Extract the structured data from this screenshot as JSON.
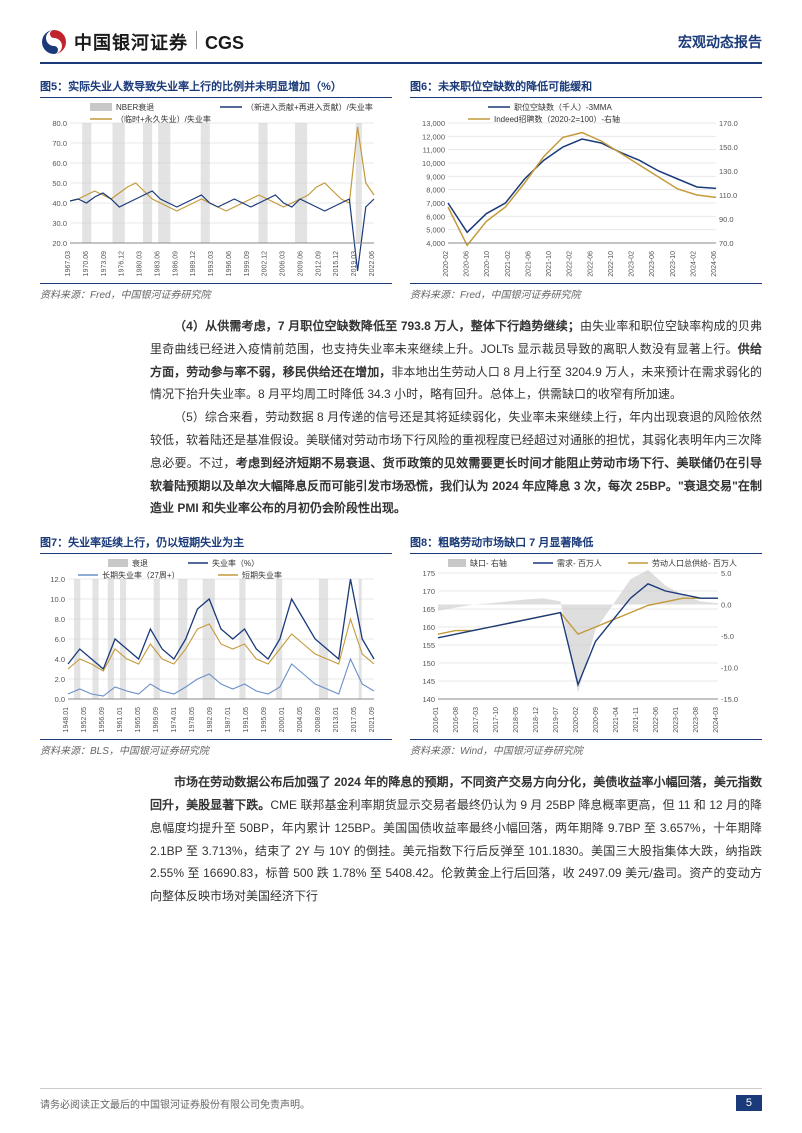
{
  "header": {
    "logo_cn": "中国银河证券",
    "logo_en": "CGS",
    "report_type": "宏观动态报告"
  },
  "charts": {
    "fig5": {
      "title": "图5：实际失业人数导致失业率上行的比例并未明显增加（%）",
      "source": "资料来源：Fred，中国银河证券研究院",
      "type": "line",
      "legend": [
        {
          "label": "NBER衰退",
          "color": "#b8b8b8",
          "style": "fill"
        },
        {
          "label": "（新进入贡献+再进入贡献）/失业率",
          "color": "#1a3a7a",
          "style": "line"
        },
        {
          "label": "（临时+永久失业）/失业率",
          "color": "#c49a3a",
          "style": "line"
        }
      ],
      "ylim": [
        20,
        80
      ],
      "ytick_step": 10,
      "x_labels": [
        "1967.03",
        "1970.06",
        "1973.09",
        "1976.12",
        "1980.03",
        "1983.06",
        "1986.09",
        "1989.12",
        "1993.03",
        "1996.06",
        "1999.09",
        "2002.12",
        "2006.03",
        "2009.06",
        "2012.09",
        "2015.12",
        "2019.03",
        "2022.06"
      ],
      "recession_bands": [
        [
          0.04,
          0.07
        ],
        [
          0.14,
          0.18
        ],
        [
          0.24,
          0.27
        ],
        [
          0.29,
          0.33
        ],
        [
          0.43,
          0.46
        ],
        [
          0.62,
          0.65
        ],
        [
          0.74,
          0.78
        ],
        [
          0.94,
          0.96
        ]
      ],
      "series_blue": [
        41,
        42,
        40,
        43,
        45,
        42,
        38,
        40,
        42,
        44,
        46,
        42,
        40,
        38,
        40,
        42,
        44,
        40,
        38,
        40,
        42,
        40,
        38,
        40,
        42,
        44,
        40,
        38,
        42,
        40,
        38,
        36,
        38,
        40,
        42,
        6,
        38,
        42
      ],
      "series_gold": [
        41,
        42,
        44,
        46,
        44,
        42,
        45,
        48,
        50,
        46,
        42,
        40,
        38,
        36,
        38,
        40,
        42,
        40,
        38,
        36,
        38,
        40,
        42,
        44,
        42,
        40,
        38,
        40,
        42,
        44,
        48,
        50,
        46,
        42,
        40,
        78,
        50,
        44
      ],
      "background_color": "#ffffff",
      "grid_color": "#e8e8e8"
    },
    "fig6": {
      "title": "图6：未来职位空缺数的降低可能缓和",
      "source": "资料来源：Fred，中国银河证券研究院",
      "type": "line-dual",
      "legend": [
        {
          "label": "职位空缺数（千人）-3MMA",
          "color": "#1a3a7a"
        },
        {
          "label": "Indeed招聘数（2020-2=100）-右轴",
          "color": "#c49a3a"
        }
      ],
      "ylim_left": [
        4000,
        13000
      ],
      "ytick_left": [
        4000,
        5000,
        6000,
        7000,
        8000,
        9000,
        10000,
        11000,
        12000,
        13000
      ],
      "ylim_right": [
        70,
        170
      ],
      "ytick_right": [
        70,
        90,
        110,
        130,
        150,
        170
      ],
      "x_labels": [
        "2020-02",
        "2020-06",
        "2020-10",
        "2021-02",
        "2021-06",
        "2021-10",
        "2022-02",
        "2022-06",
        "2022-10",
        "2023-02",
        "2023-06",
        "2023-10",
        "2024-02",
        "2024-06"
      ],
      "series_blue": [
        7000,
        4800,
        6200,
        7000,
        8800,
        10200,
        11200,
        11800,
        11500,
        10800,
        10200,
        9400,
        8800,
        8200,
        8100
      ],
      "series_gold": [
        100,
        68,
        88,
        100,
        120,
        142,
        158,
        162,
        155,
        145,
        135,
        125,
        115,
        110,
        108
      ],
      "background_color": "#ffffff",
      "grid_color": "#e8e8e8"
    },
    "fig7": {
      "title": "图7：失业率延续上行，仍以短期失业为主",
      "source": "资料来源：BLS，中国银河证券研究院",
      "type": "line",
      "legend": [
        {
          "label": "衰退",
          "color": "#c8c8c8",
          "style": "fill"
        },
        {
          "label": "失业率（%）",
          "color": "#1a3a7a"
        },
        {
          "label": "长期失业率（27周+）",
          "color": "#6a8fc8"
        },
        {
          "label": "短期失业率",
          "color": "#c49a3a"
        }
      ],
      "ylim": [
        0,
        12
      ],
      "ytick_step": 2,
      "x_labels": [
        "1948.01",
        "1952.05",
        "1956.09",
        "1961.01",
        "1965.05",
        "1969.09",
        "1974.01",
        "1978.05",
        "1982.09",
        "1987.01",
        "1991.05",
        "1995.09",
        "2000.01",
        "2004.05",
        "2008.09",
        "2013.01",
        "2017.05",
        "2021.09"
      ],
      "recession_bands": [
        [
          0.02,
          0.04
        ],
        [
          0.08,
          0.1
        ],
        [
          0.13,
          0.15
        ],
        [
          0.17,
          0.19
        ],
        [
          0.28,
          0.3
        ],
        [
          0.36,
          0.39
        ],
        [
          0.44,
          0.48
        ],
        [
          0.56,
          0.58
        ],
        [
          0.68,
          0.7
        ],
        [
          0.82,
          0.85
        ],
        [
          0.95,
          0.96
        ]
      ],
      "series_blue": [
        3.5,
        5,
        4,
        3,
        6,
        5,
        4,
        7,
        5,
        4,
        6,
        9,
        10,
        7,
        6,
        7,
        5,
        4,
        6,
        10,
        8,
        6,
        5,
        4,
        12,
        6,
        4
      ],
      "series_gold": [
        3,
        4,
        3.5,
        2.8,
        5,
        4,
        3.5,
        5.5,
        4,
        3.5,
        5,
        7,
        7.5,
        5.5,
        5,
        5.5,
        4,
        3.5,
        5,
        6.5,
        5.5,
        4.5,
        4,
        3.5,
        8,
        4.5,
        3.5
      ],
      "series_lightblue": [
        0.5,
        1,
        0.5,
        0.3,
        1.2,
        0.8,
        0.5,
        1.5,
        0.8,
        0.5,
        1.2,
        2,
        2.5,
        1.5,
        1,
        1.5,
        0.8,
        0.5,
        1.2,
        3.5,
        2.5,
        1.5,
        1,
        0.5,
        4,
        1.5,
        0.8
      ],
      "background_color": "#ffffff",
      "grid_color": "#e8e8e8"
    },
    "fig8": {
      "title": "图8：粗略劳动市场缺口 7 月显著降低",
      "source": "资料来源：Wind，中国银河证券研究院",
      "type": "line-dual-area",
      "legend": [
        {
          "label": "缺口- 右轴",
          "color": "#c8c8c8",
          "style": "fill"
        },
        {
          "label": "需求- 百万人",
          "color": "#1a3a7a"
        },
        {
          "label": "劳动人口总供给- 百万人",
          "color": "#c49a3a"
        }
      ],
      "ylim_left": [
        140,
        175
      ],
      "ytick_left": [
        140,
        145,
        150,
        155,
        160,
        165,
        170,
        175
      ],
      "ylim_right": [
        -15,
        5
      ],
      "ytick_right": [
        -15,
        -10,
        -5,
        0,
        5
      ],
      "x_labels": [
        "2016-01",
        "2016-08",
        "2017-03",
        "2017-10",
        "2018-05",
        "2018-12",
        "2019-07",
        "2020-02",
        "2020-09",
        "2021-04",
        "2021-11",
        "2022-06",
        "2023-01",
        "2023-08",
        "2024-03"
      ],
      "series_blue": [
        157,
        158,
        159,
        160,
        161,
        162,
        163,
        164,
        144,
        156,
        162,
        168,
        172,
        170,
        169,
        168,
        168
      ],
      "series_gold": [
        158,
        159,
        159,
        160,
        161,
        162,
        163,
        164,
        158,
        160,
        162,
        164,
        166,
        167,
        168,
        168,
        168
      ],
      "series_area": [
        -1,
        -0.5,
        0,
        0.2,
        0.5,
        0.8,
        1,
        0.5,
        -14,
        -4,
        0,
        4,
        5.5,
        3,
        1.5,
        0.5,
        0.2
      ],
      "background_color": "#ffffff",
      "grid_color": "#e8e8e8"
    }
  },
  "body1": {
    "p1_lead": "（4）从供需考虑，7 月职位空缺数降低至 793.8 万人，整体下行趋势继续；",
    "p1_rest": "由失业率和职位空缺率构成的贝弗里奇曲线已经进入疫情前范围，也支持失业率未来继续上升。JOLTs 显示裁员导致的离职人数没有显著上行。",
    "p1_bold2": "供给方面，劳动参与率不弱，移民供给还在增加，",
    "p1_rest2": "非本地出生劳动人口 8 月上行至 3204.9 万人，未来预计在需求弱化的情况下抬升失业率。8 月平均周工时降低 34.3 小时，略有回升。总体上，供需缺口的收窄有所加速。",
    "p2": "（5）综合来看，劳动数据 8 月传递的信号还是其将延续弱化，失业率未来继续上行，年内出现衰退的风险依然较低，软着陆还是基准假设。美联储对劳动市场下行风险的重视程度已经超过对通胀的担忧，其弱化表明年内三次降息必要。不过，",
    "p2_bold": "考虑到经济短期不易衰退、货币政策的见效需要更长时间才能阻止劳动市场下行、美联储仍在引导软着陆预期以及单次大幅降息反而可能引发市场恐慌，我们认为 2024 年应降息 3 次，每次 25BP。\"衰退交易\"在制造业 PMI 和失业率公布的月初仍会阶段性出现。"
  },
  "body2": {
    "p1_bold": "市场在劳动数据公布后加强了 2024 年的降息的预期，不同资产交易方向分化，美债收益率小幅回落，美元指数回升，美股显著下跌。",
    "p1_rest": "CME 联邦基金利率期货显示交易者最终仍认为 9 月 25BP 降息概率更高，但 11 和 12 月的降息幅度均提升至 50BP，年内累计 125BP。美国国债收益率最终小幅回落，两年期降 9.7BP 至 3.657%，十年期降 2.1BP 至 3.713%，结束了 2Y 与 10Y 的倒挂。美元指数下行后反弹至 101.1830。美国三大股指集体大跌，纳指跌 2.55% 至 16690.83，标普 500 跌 1.78% 至 5408.42。伦敦黄金上行后回落，收 2497.09 美元/盎司。资产的变动方向整体反映市场对美国经济下行"
  },
  "footer": {
    "disclaimer": "请务必阅读正文最后的中国银河证券股份有限公司免责声明。",
    "page": "5"
  }
}
